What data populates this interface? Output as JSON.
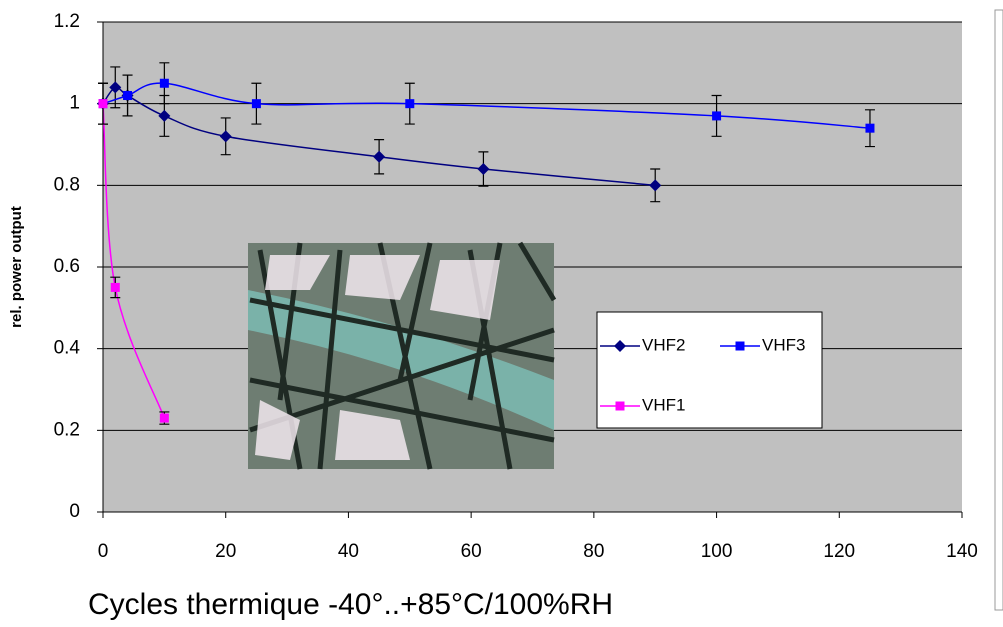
{
  "chart_data": {
    "type": "line",
    "xlabel": "Cycles thermique -40°..+85°C/100%RH",
    "ylabel": "rel. power output",
    "xlim": [
      0,
      140
    ],
    "xticks": [
      0,
      20,
      40,
      60,
      80,
      100,
      120,
      140
    ],
    "ylim": [
      0,
      1.2
    ],
    "yticks": [
      0,
      0.2,
      0.4,
      0.6,
      0.8,
      1,
      1.2
    ],
    "grid": true,
    "legend": "right",
    "series": [
      {
        "name": "VHF2",
        "color": "#000080",
        "marker": "diamond",
        "x": [
          0,
          2,
          4,
          10,
          20,
          45,
          62,
          90
        ],
        "values": [
          1.0,
          1.04,
          1.02,
          0.97,
          0.92,
          0.87,
          0.84,
          0.8
        ],
        "errors": [
          0.05,
          0.05,
          0.05,
          0.05,
          0.045,
          0.042,
          0.042,
          0.04
        ]
      },
      {
        "name": "VHF3",
        "color": "#0000ff",
        "marker": "square",
        "x": [
          0,
          4,
          10,
          25,
          50,
          100,
          125
        ],
        "values": [
          1.0,
          1.02,
          1.05,
          1.0,
          1.0,
          0.97,
          0.94
        ],
        "errors": [
          0.05,
          0.05,
          0.05,
          0.05,
          0.05,
          0.05,
          0.045
        ]
      },
      {
        "name": "VHF1",
        "color": "#ff00ff",
        "marker": "square",
        "x": [
          0,
          2,
          10
        ],
        "values": [
          1.0,
          0.55,
          0.23
        ],
        "errors": [
          0.05,
          0.025,
          0.015
        ]
      }
    ]
  }
}
